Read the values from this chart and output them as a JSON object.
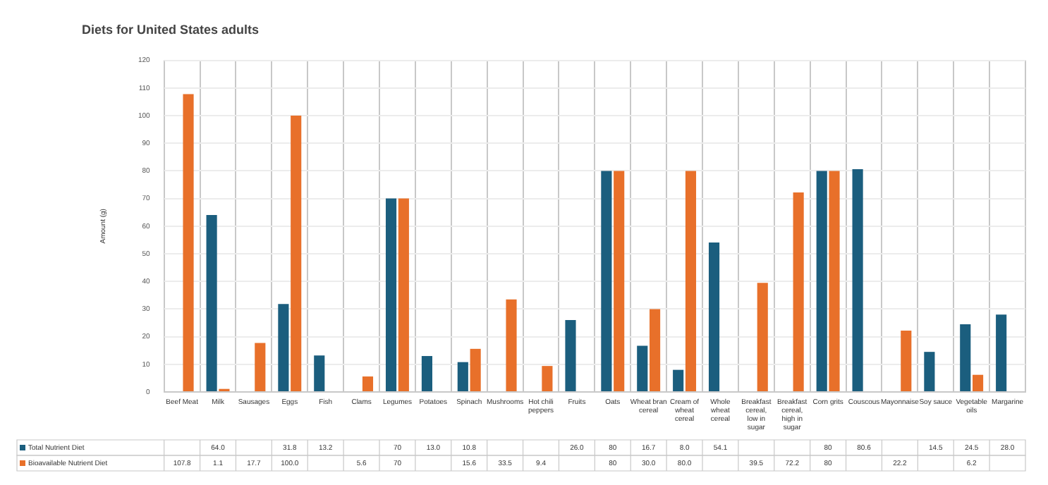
{
  "chart_data": {
    "type": "bar",
    "title": "Diets for United States adults",
    "ylabel": "Amount (g)",
    "categories": [
      "Beef Meat",
      "Milk",
      "Sausages",
      "Eggs",
      "Fish",
      "Clams",
      "Legumes",
      "Potatoes",
      "Spinach",
      "Mushrooms",
      "Hot chili peppers",
      "Fruits",
      "Oats",
      "Wheat bran cereal",
      "Cream of wheat cereal",
      "Whole wheat cereal",
      "Breakfast cereal, low in sugar",
      "Breakfast cereal, high in sugar",
      "Corn grits",
      "Couscous",
      "Mayonnaise",
      "Soy sauce",
      "Vegetable oils",
      "Margarine"
    ],
    "series": [
      {
        "name": "Total Nutrient Diet",
        "color": "#1b5e7e",
        "values": [
          null,
          64.0,
          null,
          31.8,
          13.2,
          null,
          70,
          13.0,
          10.8,
          null,
          null,
          26.0,
          80,
          16.7,
          8.0,
          54.1,
          null,
          null,
          80,
          80.6,
          null,
          14.5,
          24.5,
          28.0
        ],
        "value_labels": [
          null,
          "64.0",
          null,
          "31.8",
          "13.2",
          null,
          "70",
          "13.0",
          "10.8",
          null,
          null,
          "26.0",
          "80",
          "16.7",
          "8.0",
          "54.1",
          null,
          null,
          "80",
          "80.6",
          null,
          "14.5",
          "24.5",
          "28.0"
        ]
      },
      {
        "name": "Bioavailable Nutrient Diet",
        "color": "#e8702a",
        "values": [
          107.8,
          1.1,
          17.7,
          100.0,
          null,
          5.6,
          70,
          null,
          15.6,
          33.5,
          9.4,
          null,
          80,
          30.0,
          80.0,
          null,
          39.5,
          72.2,
          80,
          null,
          22.2,
          null,
          6.2,
          null
        ],
        "value_labels": [
          "107.8",
          "1.1",
          "17.7",
          "100.0",
          null,
          "5.6",
          "70",
          null,
          "15.6",
          "33.5",
          "9.4",
          null,
          "80",
          "30.0",
          "80.0",
          null,
          "39.5",
          "72.2",
          "80",
          null,
          "22.2",
          null,
          "6.2",
          null
        ]
      }
    ],
    "ylim": [
      0,
      120
    ],
    "yticks": [
      0,
      10,
      20,
      30,
      40,
      50,
      60,
      70,
      80,
      90,
      100,
      110,
      120
    ],
    "grid": true,
    "legend": "bottom"
  }
}
